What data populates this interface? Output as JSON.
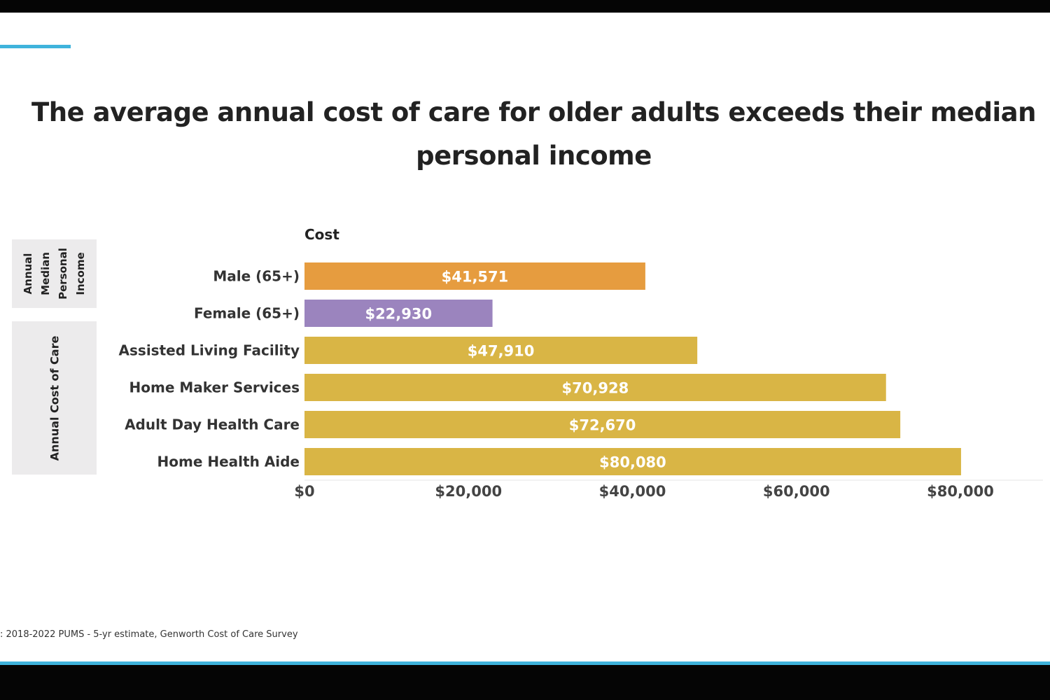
{
  "slide": {
    "title": "The average annual cost of care for older adults exceeds their median personal income",
    "source": ": 2018-2022 PUMS - 5-yr estimate, Genworth Cost of Care Survey",
    "groups": {
      "income": "Annual Median Personal Income",
      "cost": "Annual Cost of Care"
    }
  },
  "colors": {
    "accent": "#3fb3dc",
    "male": "#e69c3f",
    "female": "#9b84be",
    "care": "#d9b545"
  },
  "chart_data": {
    "type": "bar",
    "orientation": "horizontal",
    "axis_title": "Cost",
    "categories": [
      "Male (65+)",
      "Female (65+)",
      "Assisted Living Facility",
      "Home Maker Services",
      "Adult Day Health Care",
      "Home Health Aide"
    ],
    "values": [
      41571,
      22930,
      47910,
      70928,
      72670,
      80080
    ],
    "value_labels": [
      "$41,571",
      "$22,930",
      "$47,910",
      "$70,928",
      "$72,670",
      "$80,080"
    ],
    "bar_colors": [
      "#e69c3f",
      "#9b84be",
      "#d9b545",
      "#d9b545",
      "#d9b545",
      "#d9b545"
    ],
    "xticks": [
      0,
      20000,
      40000,
      60000,
      80000
    ],
    "xtick_labels": [
      "$0",
      "$20,000",
      "$40,000",
      "$60,000",
      "$80,000"
    ],
    "xlim": [
      0,
      90000
    ],
    "grid": false,
    "legend": "none"
  }
}
